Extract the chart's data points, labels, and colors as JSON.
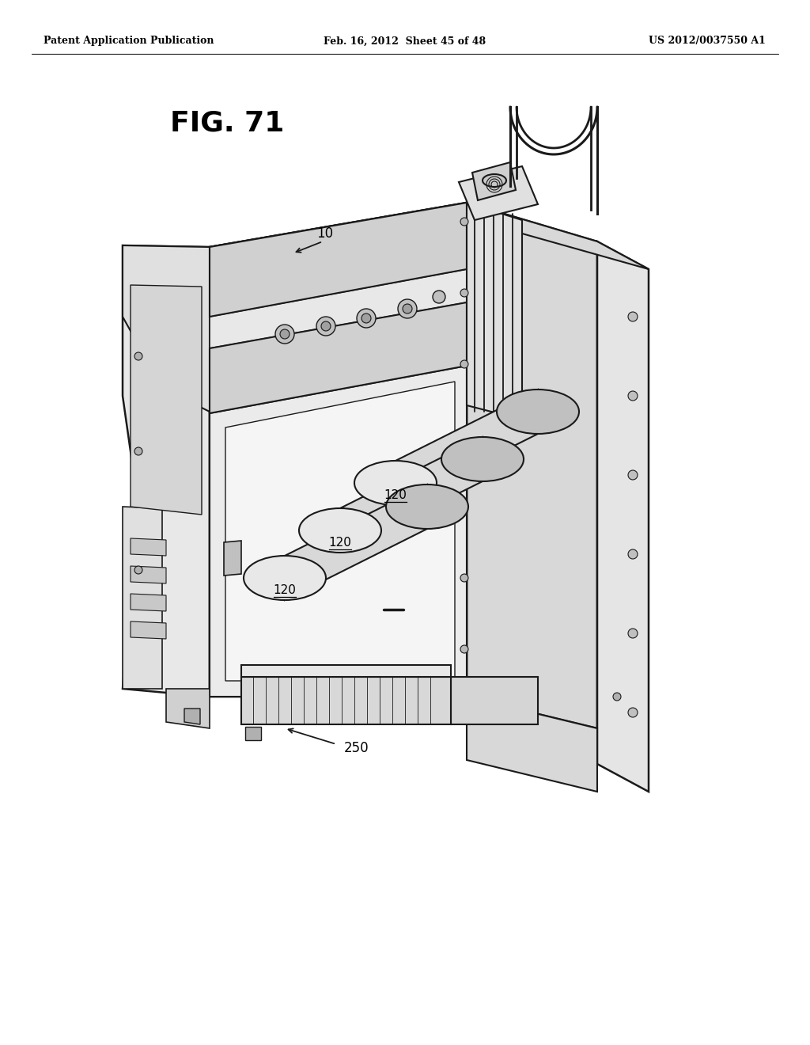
{
  "background_color": "#ffffff",
  "header_left": "Patent Application Publication",
  "header_center": "Feb. 16, 2012  Sheet 45 of 48",
  "header_right": "US 2012/0037550 A1",
  "fig_label": "FIG. 71",
  "label_10": "10",
  "label_120": "120",
  "label_250": "250",
  "line_color": "#1a1a1a",
  "fill_vlight": "#f0f0f0",
  "fill_light": "#e0e0e0",
  "fill_mid": "#c8c8c8",
  "fill_dark": "#a8a8a8",
  "fill_white": "#f8f8f8"
}
